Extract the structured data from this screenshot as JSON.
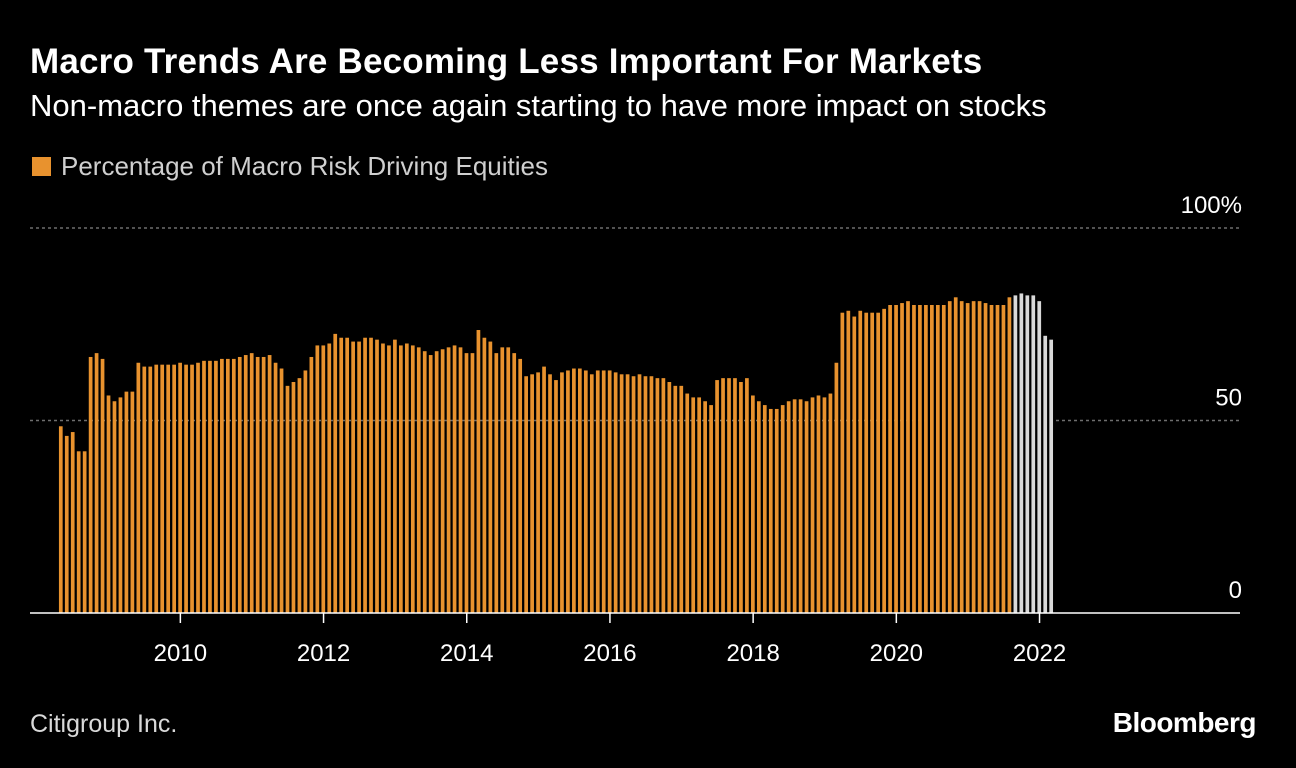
{
  "title": "Macro Trends Are Becoming Less Important For Markets",
  "subtitle": "Non-macro themes are once again starting to have more impact on stocks",
  "source": "Citigroup Inc.",
  "brand": "Bloomberg",
  "colors": {
    "background": "#000000",
    "bar": "#e8922e",
    "projected_bar": "#d9d9d9",
    "gridline": "#6e6e6e",
    "axis": "#ffffff",
    "tick_text": "#ffffff"
  },
  "chart_data": {
    "type": "bar",
    "title": "Macro Trends Are Becoming Less Important For Markets",
    "subtitle": "Non-macro themes are once again starting to have more impact on stocks",
    "series_name": "Percentage of Macro Risk Driving Equities",
    "xlabel": "",
    "ylabel": "",
    "ylim": [
      0,
      100
    ],
    "y_ticks": [
      {
        "value": 0,
        "label": "0"
      },
      {
        "value": 50,
        "label": "50"
      },
      {
        "value": 100,
        "label": "100%"
      }
    ],
    "x_range": [
      2007.9,
      2024.8
    ],
    "x_ticks": [
      {
        "value": 2010,
        "label": "2010"
      },
      {
        "value": 2012,
        "label": "2012"
      },
      {
        "value": 2014,
        "label": "2014"
      },
      {
        "value": 2016,
        "label": "2016"
      },
      {
        "value": 2018,
        "label": "2018"
      },
      {
        "value": 2020,
        "label": "2020"
      },
      {
        "value": 2022,
        "label": "2022"
      }
    ],
    "gridlines": true,
    "start": 2008.33,
    "step": 0.08333,
    "values": [
      48.5,
      46,
      47,
      42,
      42,
      66.5,
      67.5,
      66,
      56.5,
      55,
      56,
      57.5,
      57.5,
      65,
      64,
      64,
      64.5,
      64.5,
      64.5,
      64.5,
      65,
      64.5,
      64.5,
      65,
      65.5,
      65.5,
      65.5,
      66,
      66,
      66,
      66.5,
      67,
      67.5,
      66.5,
      66.5,
      67,
      65,
      63.5,
      59,
      60,
      61,
      63,
      66.5,
      69.5,
      69.5,
      70,
      72.5,
      71.5,
      71.5,
      70.5,
      70.5,
      71.5,
      71.5,
      71,
      70,
      69.5,
      71,
      69.5,
      70,
      69.5,
      69,
      68,
      67,
      68,
      68.5,
      69,
      69.5,
      69,
      67.5,
      67.5,
      73.5,
      71.5,
      70.5,
      67.5,
      69,
      69,
      67.5,
      66,
      61.5,
      62,
      62.5,
      64,
      62,
      60.5,
      62.5,
      63,
      63.5,
      63.5,
      63,
      62,
      63,
      63,
      63,
      62.5,
      62,
      62,
      61.5,
      62,
      61.5,
      61.5,
      61,
      61,
      60,
      59,
      59,
      57,
      56,
      56,
      55,
      54,
      60.5,
      61,
      61,
      61,
      60,
      61,
      56.5,
      55,
      54,
      53,
      53,
      54,
      55,
      55.5,
      55.5,
      55,
      56,
      56.5,
      56,
      57,
      65,
      78,
      78.5,
      77,
      78.5,
      78,
      78,
      78,
      79,
      80,
      80,
      80.5,
      81,
      80,
      80,
      80,
      80,
      80,
      80,
      81,
      82,
      81,
      80.5,
      81,
      81,
      80.5,
      80,
      80,
      80,
      82,
      82.5,
      83,
      82.5,
      82.5,
      81,
      72,
      71
    ],
    "projected_from_index": 160
  }
}
